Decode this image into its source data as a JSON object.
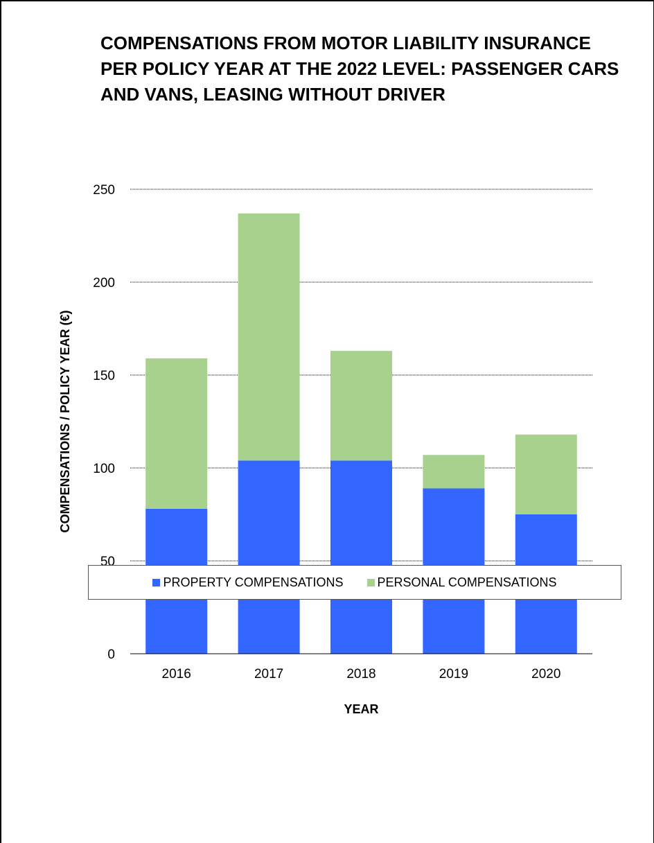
{
  "chart_data": {
    "type": "bar",
    "stacked": true,
    "title": "COMPENSATIONS FROM MOTOR LIABILITY INSURANCE PER POLICY YEAR AT THE 2022 LEVEL: PASSENGER CARS AND VANS, LEASING WITHOUT DRIVER",
    "xlabel": "YEAR",
    "ylabel": "COMPENSATIONS / POLICY YEAR (€)",
    "ylim": [
      0,
      250
    ],
    "yticks": [
      0,
      50,
      100,
      150,
      200,
      250
    ],
    "grid": true,
    "legend_position": "bottom",
    "categories": [
      "2016",
      "2017",
      "2018",
      "2019",
      "2020"
    ],
    "series": [
      {
        "name": "PROPERTY COMPENSATIONS",
        "color": "#3366ff",
        "values": [
          78,
          104,
          104,
          89,
          75
        ]
      },
      {
        "name": "PERSONAL COMPENSATIONS",
        "color": "#a9d18e",
        "values": [
          81,
          133,
          59,
          18,
          43
        ]
      }
    ]
  }
}
